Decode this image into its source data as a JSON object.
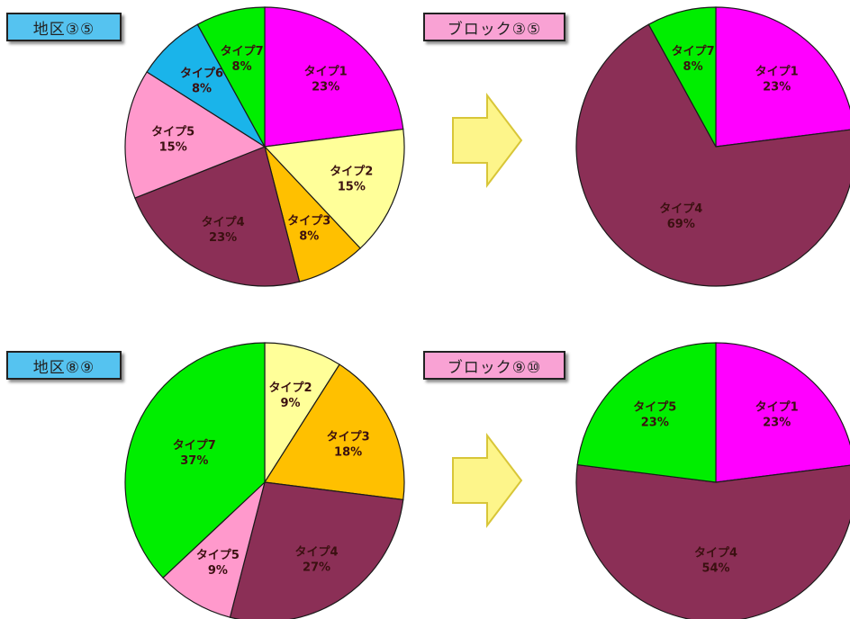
{
  "colors": {
    "tag_district": "#55c3f0",
    "tag_block": "#f9a2d4",
    "arrow_fill": "#fdf58a",
    "arrow_stroke": "#d8c638",
    "slice_outline": "#1a1a1a"
  },
  "tags": {
    "t1": "地区③⑤",
    "t2": "ブロック③⑤",
    "t3": "地区⑧⑨",
    "t4": "ブロック⑨⑩"
  },
  "chart_data": [
    {
      "type": "pie",
      "title": "地区③⑤",
      "slices": [
        {
          "label": "タイプ1",
          "value": 23,
          "pct": "23%",
          "color": "#ff00ff"
        },
        {
          "label": "タイプ2",
          "value": 15,
          "pct": "15%",
          "color": "#ffff99"
        },
        {
          "label": "タイプ3",
          "value": 8,
          "pct": "8%",
          "color": "#ffc000"
        },
        {
          "label": "タイプ4",
          "value": 23,
          "pct": "23%",
          "color": "#8b2f56"
        },
        {
          "label": "タイプ5",
          "value": 15,
          "pct": "15%",
          "color": "#ff99cc"
        },
        {
          "label": "タイプ6",
          "value": 8,
          "pct": "8%",
          "color": "#1ab4ea"
        },
        {
          "label": "タイプ7",
          "value": 8,
          "pct": "8%",
          "color": "#00ee00"
        }
      ]
    },
    {
      "type": "pie",
      "title": "ブロック③⑤",
      "slices": [
        {
          "label": "タイプ1",
          "value": 23,
          "pct": "23%",
          "color": "#ff00ff"
        },
        {
          "label": "タイプ4",
          "value": 69,
          "pct": "69%",
          "color": "#8b2f56"
        },
        {
          "label": "タイプ7",
          "value": 8,
          "pct": "8%",
          "color": "#00ee00"
        }
      ]
    },
    {
      "type": "pie",
      "title": "地区⑧⑨",
      "slices": [
        {
          "label": "タイプ2",
          "value": 9,
          "pct": "9%",
          "color": "#ffff99"
        },
        {
          "label": "タイプ3",
          "value": 18,
          "pct": "18%",
          "color": "#ffc000"
        },
        {
          "label": "タイプ4",
          "value": 27,
          "pct": "27%",
          "color": "#8b2f56"
        },
        {
          "label": "タイプ5",
          "value": 9,
          "pct": "9%",
          "color": "#ff99cc"
        },
        {
          "label": "タイプ7",
          "value": 37,
          "pct": "37%",
          "color": "#00ee00"
        }
      ]
    },
    {
      "type": "pie",
      "title": "ブロック⑨⑩",
      "slices": [
        {
          "label": "タイプ1",
          "value": 23,
          "pct": "23%",
          "color": "#ff00ff"
        },
        {
          "label": "タイプ4",
          "value": 54,
          "pct": "54%",
          "color": "#8b2f56"
        },
        {
          "label": "タイプ5",
          "value": 23,
          "pct": "23%",
          "color": "#00ee00"
        }
      ]
    }
  ]
}
